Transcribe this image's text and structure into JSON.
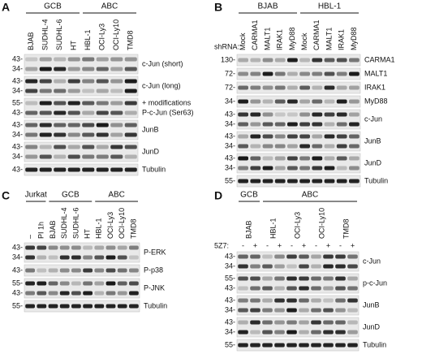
{
  "panels": [
    {
      "letter": "A",
      "groups": [
        {
          "name": "GCB",
          "lanes": [
            "BJAB",
            "SUDHL-4",
            "SUDHL-6",
            "HT"
          ]
        },
        {
          "name": "ABC",
          "lanes": [
            "HBL-1",
            "OCI-Ly3",
            "OCI-Ly10",
            "TMD8"
          ]
        }
      ],
      "blots": [
        {
          "markers": [
            "43-",
            "34-"
          ],
          "labels": [
            "c-Jun (short)"
          ]
        },
        {
          "markers": [
            "43-",
            "34-"
          ],
          "labels": [
            "c-Jun (long)"
          ]
        },
        {
          "markers": [
            "55-",
            "43-"
          ],
          "labels": [
            "+ modifications",
            "P-c-Jun (Ser63)"
          ]
        },
        {
          "markers": [
            "43-",
            "34-"
          ],
          "labels": [
            "JunB"
          ]
        },
        {
          "markers": [
            "43-",
            "34-"
          ],
          "labels": [
            "JunD"
          ]
        },
        {
          "markers": [
            "43-"
          ],
          "labels": [
            "Tubulin"
          ]
        }
      ]
    },
    {
      "letter": "B",
      "prefix": "shRNA:",
      "groups": [
        {
          "name": "BJAB",
          "lanes": [
            "Mock",
            "CARMA1",
            "MALT1",
            "IRAK1",
            "MyD88"
          ]
        },
        {
          "name": "HBL-1",
          "lanes": [
            "Mock",
            "CARMA1",
            "MALT1",
            "IRAK1",
            "MyD88"
          ]
        }
      ],
      "blots": [
        {
          "markers": [
            "130-"
          ],
          "labels": [
            "CARMA1"
          ]
        },
        {
          "markers": [
            "72-"
          ],
          "labels": [
            "MALT1"
          ]
        },
        {
          "markers": [
            "72-"
          ],
          "labels": [
            "IRAK1"
          ]
        },
        {
          "markers": [
            "34-"
          ],
          "labels": [
            "MyD88"
          ]
        },
        {
          "markers": [
            "43-",
            "34-"
          ],
          "labels": [
            "c-Jun"
          ]
        },
        {
          "markers": [
            "43-",
            "34-"
          ],
          "labels": [
            "JunB"
          ]
        },
        {
          "markers": [
            "43-",
            "34-"
          ],
          "labels": [
            "JunD"
          ]
        },
        {
          "markers": [
            "55-"
          ],
          "labels": [
            "Tubulin"
          ]
        }
      ]
    },
    {
      "letter": "C",
      "groups": [
        {
          "name": "Jurkat",
          "lanes": [
            "–",
            "PI 1h"
          ]
        },
        {
          "name": "GCB",
          "lanes": [
            "BJAB",
            "SUDHL-4",
            "SUDHL-6",
            "HT"
          ]
        },
        {
          "name": "ABC",
          "lanes": [
            "HBL-1",
            "OCI-Ly3",
            "OCI-Ly10",
            "TMD8"
          ]
        }
      ],
      "blots": [
        {
          "markers": [
            "43-",
            "34-"
          ],
          "labels": [
            "P-ERK"
          ]
        },
        {
          "markers": [
            "43-"
          ],
          "labels": [
            "P-p38"
          ]
        },
        {
          "markers": [
            "55-",
            "43-"
          ],
          "labels": [
            "P-JNK"
          ]
        },
        {
          "markers": [
            "55-"
          ],
          "labels": [
            "Tubulin"
          ]
        }
      ]
    },
    {
      "letter": "D",
      "prefix": "5Z7:",
      "groups": [
        {
          "name": "GCB",
          "lanes": [
            {
              "name": "BJAB",
              "signs": [
                "-",
                "+"
              ]
            }
          ]
        },
        {
          "name": "ABC",
          "lanes": [
            {
              "name": "HBL-1",
              "signs": [
                "-",
                "+"
              ]
            },
            {
              "name": "OCI-Ly3",
              "signs": [
                "-",
                "+"
              ]
            },
            {
              "name": "OCI-Ly10",
              "signs": [
                "-",
                "+"
              ]
            },
            {
              "name": "TMD8",
              "signs": [
                "-",
                "+"
              ]
            }
          ]
        }
      ],
      "blots": [
        {
          "markers": [
            "43-",
            "34-"
          ],
          "labels": [
            "c-Jun"
          ]
        },
        {
          "markers": [
            "55-",
            "43-"
          ],
          "labels": [
            "p-c-Jun"
          ]
        },
        {
          "markers": [
            "43-",
            "34-"
          ],
          "labels": [
            "JunB"
          ]
        },
        {
          "markers": [
            "43-",
            "34-"
          ],
          "labels": [
            "JunD"
          ]
        },
        {
          "markers": [
            "55-"
          ],
          "labels": [
            "Tubulin"
          ]
        }
      ]
    }
  ]
}
